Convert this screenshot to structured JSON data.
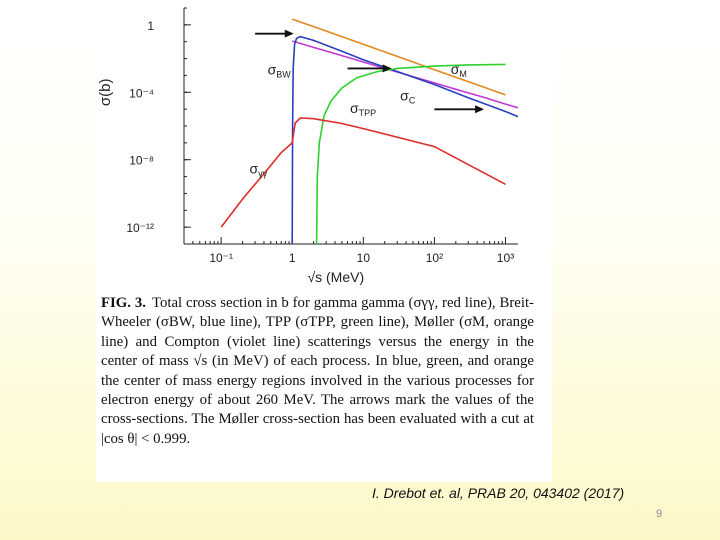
{
  "chart_data": {
    "type": "line",
    "title": "",
    "xlabel": "√s (MeV)",
    "ylabel": "σ(b)",
    "x_scale": "log",
    "y_scale": "log",
    "xlim": [
      0.03,
      1500
    ],
    "ylim": [
      1e-13,
      10
    ],
    "x_ticks": [
      {
        "value": 0.1,
        "label": "10⁻¹"
      },
      {
        "value": 1,
        "label": "1"
      },
      {
        "value": 10,
        "label": "10"
      },
      {
        "value": 100,
        "label": "10²"
      },
      {
        "value": 1000,
        "label": "10³"
      }
    ],
    "y_ticks": [
      {
        "value": 1,
        "label": "1"
      },
      {
        "value": 0.0001,
        "label": "10⁻⁴"
      },
      {
        "value": 1e-08,
        "label": "10⁻⁸"
      },
      {
        "value": 1e-12,
        "label": "10⁻¹²"
      }
    ],
    "grid": false,
    "series": [
      {
        "name": "σM",
        "color": "#e08a1e",
        "x": [
          1,
          2,
          5,
          10,
          20,
          50,
          100,
          200,
          500,
          1000
        ],
        "y": [
          2.2,
          0.79,
          0.2,
          0.07,
          0.025,
          0.0063,
          0.0022,
          0.00079,
          0.0002,
          7e-05
        ]
      },
      {
        "name": "σC",
        "color": "#c23ad6",
        "x": [
          1,
          2,
          5,
          10,
          20,
          50,
          100,
          200,
          500,
          1000,
          1500
        ],
        "y": [
          0.11,
          0.046,
          0.015,
          0.0063,
          0.0026,
          0.00085,
          0.00036,
          0.00015,
          5e-05,
          2e-05,
          1.2e-05
        ]
      },
      {
        "name": "σBW",
        "color": "#2a3fbf",
        "x": [
          1.0,
          1.01,
          1.03,
          1.08,
          1.15,
          1.3,
          2,
          5,
          10,
          30,
          100,
          300,
          1000,
          1500
        ],
        "y": [
          1e-13,
          1e-06,
          0.003,
          0.07,
          0.16,
          0.2,
          0.12,
          0.027,
          0.0086,
          0.0017,
          0.00029,
          4.8e-05,
          7.2e-06,
          3.6e-06
        ]
      },
      {
        "name": "σTPP",
        "color": "#2ed12e",
        "x": [
          2.2,
          2.25,
          2.4,
          2.8,
          3.5,
          5,
          8,
          15,
          30,
          100,
          300,
          1000
        ],
        "y": [
          1e-13,
          1e-09,
          1e-07,
          4e-06,
          3e-05,
          0.00018,
          0.0007,
          0.0016,
          0.0026,
          0.0036,
          0.0042,
          0.0045
        ]
      },
      {
        "name": "σγγ",
        "color": "#e02b2b",
        "x": [
          0.1,
          0.2,
          0.4,
          0.7,
          1.0,
          1.1,
          1.3,
          2,
          5,
          10,
          100,
          1000
        ],
        "y": [
          1e-12,
          4.7e-11,
          1.5e-09,
          2.6e-08,
          1e-07,
          1.5e-06,
          3e-06,
          2.7e-06,
          1.4e-06,
          7e-07,
          6e-08,
          3.5e-10
        ]
      }
    ],
    "arrows": [
      {
        "x_tail": 0.3,
        "x_head": 1.05,
        "y": 0.3
      },
      {
        "x_tail": 6,
        "x_head": 25,
        "y": 0.0026
      },
      {
        "x_tail": 100,
        "x_head": 500,
        "y": 9.8e-06
      }
    ],
    "labels": [
      {
        "text": "σBW",
        "x": 0.45,
        "y": 0.0011
      },
      {
        "text": "σM",
        "x": 170,
        "y": 0.0012
      },
      {
        "text": "σC",
        "x": 33,
        "y": 3.2e-05
      },
      {
        "text": "σTPP",
        "x": 6.5,
        "y": 6e-06
      },
      {
        "text": "σγγ",
        "x": 0.25,
        "y": 1.5e-09
      }
    ]
  },
  "caption": {
    "label": "FIG. 3.",
    "text": "Total cross section in b for gamma gamma (σγγ, red line), Breit-Wheeler (σBW, blue line), TPP (σTPP, green line), Møller (σM, orange line) and Compton (violet line) scatterings versus the energy in the center of mass √s (in MeV) of each process. In blue, green, and orange the center of mass energy regions involved in the various processes for electron energy of about 260 MeV. The arrows mark the values of the cross-sections. The Møller cross-section has been evaluated with a cut at |cos θ| < 0.999."
  },
  "citation": "I. Drebot et. al, PRAB 20, 043402 (2017)",
  "page_number": "9"
}
